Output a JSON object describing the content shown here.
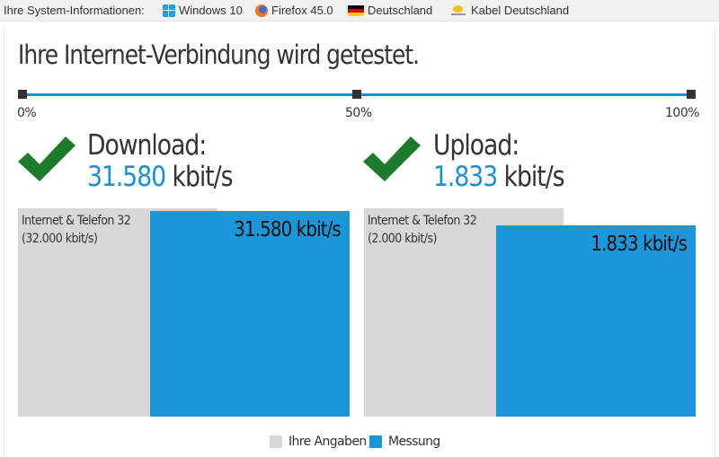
{
  "system_info": {
    "label": "Ihre System-Informationen:",
    "os": "Windows 10",
    "browser": "Firefox 45.0",
    "country": "Deutschland",
    "provider": "Kabel Deutschland"
  },
  "page": {
    "title": "Ihre Internet-Verbindung wird getestet."
  },
  "progress": {
    "value": 1.0,
    "labels": [
      "0%",
      "50%",
      "100%"
    ]
  },
  "download": {
    "title": "Download:",
    "value": "31.580",
    "unit": "kbit/s",
    "ref_label_line1": "Internet & Telefon 32",
    "ref_label_line2": "(32.000 kbit/s)",
    "measured_label": "31.580 kbit/s",
    "ref_kbit": 32000,
    "measured_kbit": 31580
  },
  "upload": {
    "title": "Upload:",
    "value": "1.833",
    "unit": "kbit/s",
    "ref_label_line1": "Internet & Telefon 32",
    "ref_label_line2": "(2.000 kbit/s)",
    "measured_label": "1.833 kbit/s",
    "ref_kbit": 2000,
    "measured_kbit": 1833
  },
  "legend": {
    "ref": "Ihre Angaben",
    "measured": "Messung"
  },
  "colors": {
    "accent": "#1f8fd3",
    "bar_measured": "#1a96d9",
    "bar_ref": "#d8d8d8",
    "check": "#1e7a2c"
  }
}
